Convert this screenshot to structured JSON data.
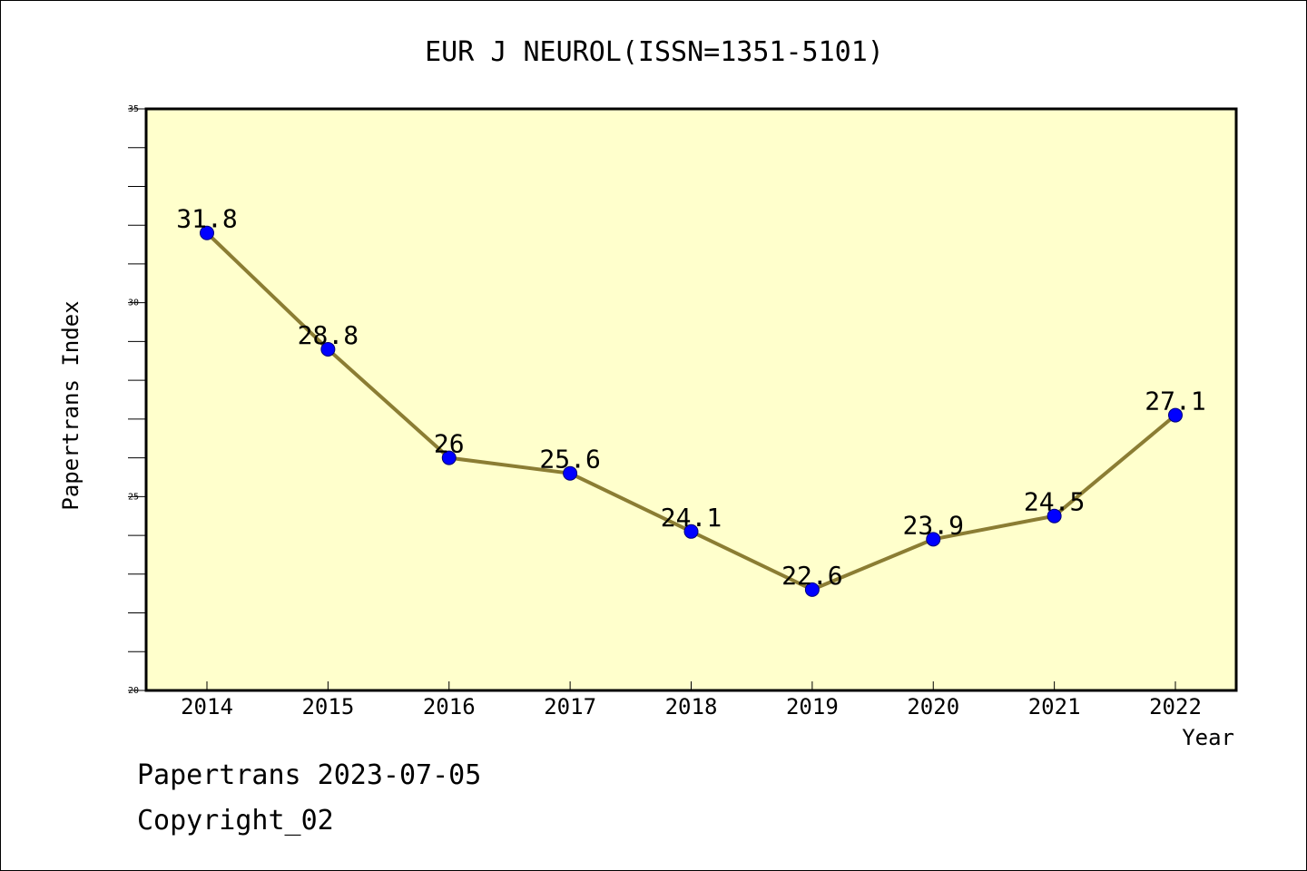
{
  "chart_data": {
    "type": "line",
    "title": "EUR J NEUROL(ISSN=1351-5101)",
    "xlabel": "Year",
    "ylabel": "Papertrans Index",
    "x": [
      "2014",
      "2015",
      "2016",
      "2017",
      "2018",
      "2019",
      "2020",
      "2021",
      "2022"
    ],
    "series": [
      {
        "values": [
          31.8,
          28.8,
          26,
          25.6,
          24.1,
          22.6,
          23.9,
          24.5,
          27.1
        ],
        "labels": [
          "31.8",
          "28.8",
          "26",
          "25.6",
          "24.1",
          "22.6",
          "23.9",
          "24.5",
          "27.1"
        ]
      }
    ],
    "ylim": [
      20,
      35
    ],
    "yticks": [
      "20",
      "25",
      "30",
      "35"
    ],
    "y_minor_step": 1,
    "grid": false,
    "legend": "none",
    "colors": {
      "plot_background": "#ffffcc",
      "line": "#8b7d33",
      "marker": "#0000ff"
    }
  },
  "footer": {
    "line1": "Papertrans 2023-07-05",
    "line2": "Copyright_02"
  }
}
